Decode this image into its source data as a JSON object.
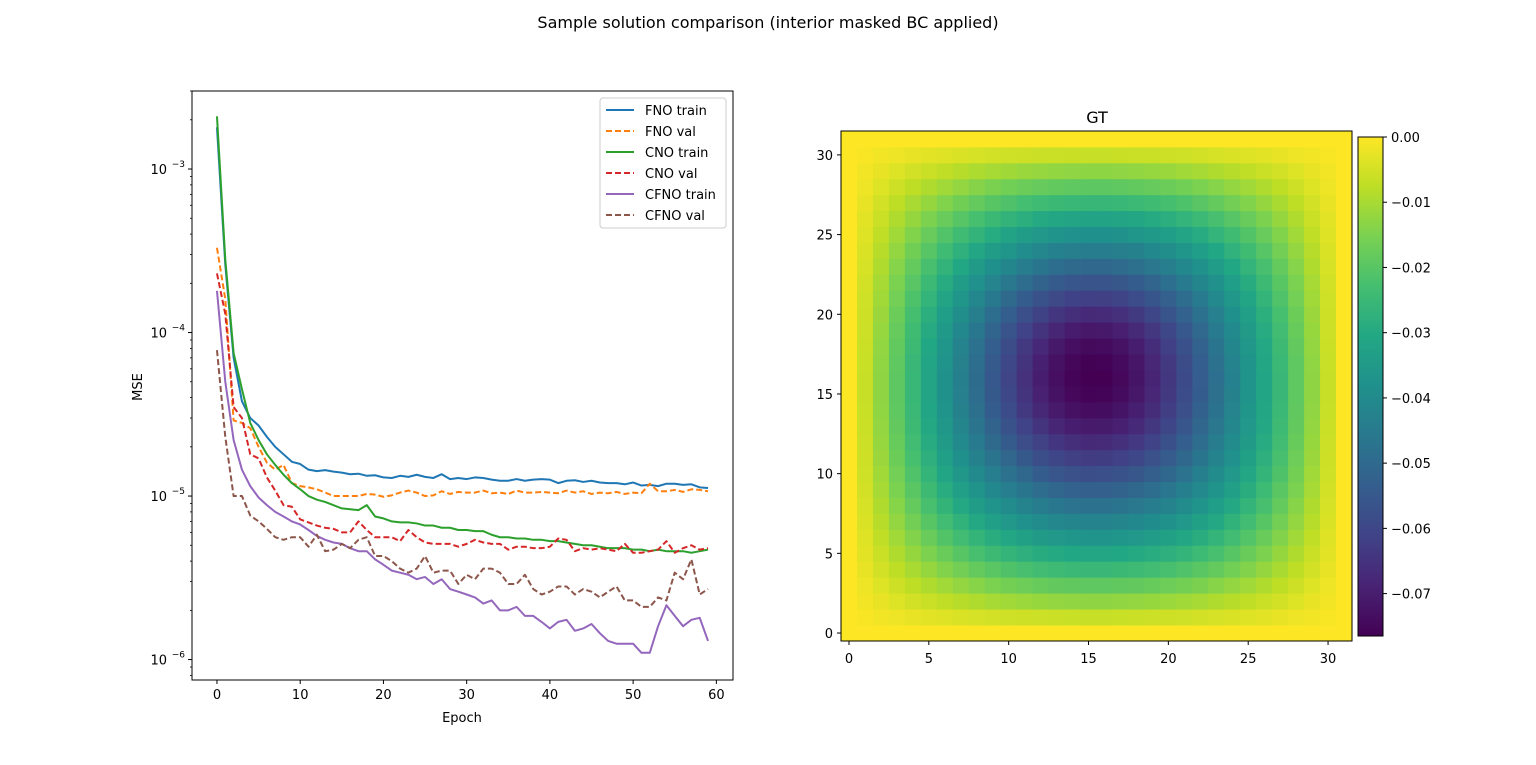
{
  "figure": {
    "suptitle": "Sample solution comparison (interior masked BC applied)"
  },
  "chart_data": [
    {
      "type": "line",
      "title": "",
      "xlabel": "Epoch",
      "ylabel": "MSE",
      "yscale": "log",
      "xlim": [
        -3,
        62
      ],
      "ylim": [
        7.5e-07,
        0.003
      ],
      "xticks": [
        0,
        10,
        20,
        30,
        40,
        50,
        60
      ],
      "yticks": [
        {
          "value": 1e-06,
          "base": "10",
          "exp": "−6"
        },
        {
          "value": 1e-05,
          "base": "10",
          "exp": "−5"
        },
        {
          "value": 0.0001,
          "base": "10",
          "exp": "−4"
        },
        {
          "value": 0.001,
          "base": "10",
          "exp": "−3"
        }
      ],
      "grid": false,
      "legend_position": "top-right",
      "series": [
        {
          "name": "FNO train",
          "color": "#1f77b4",
          "dash": "solid",
          "values": [
            0.0018,
            0.00026,
            7e-05,
            3.8e-05,
            3e-05,
            2.7e-05,
            2.3e-05,
            2e-05,
            1.8e-05,
            1.62e-05,
            1.57e-05,
            1.45e-05,
            1.42e-05,
            1.44e-05,
            1.41e-05,
            1.39e-05,
            1.36e-05,
            1.37e-05,
            1.33e-05,
            1.34e-05,
            1.3e-05,
            1.29e-05,
            1.33e-05,
            1.31e-05,
            1.35e-05,
            1.31e-05,
            1.29e-05,
            1.36e-05,
            1.27e-05,
            1.29e-05,
            1.27e-05,
            1.3e-05,
            1.29e-05,
            1.26e-05,
            1.24e-05,
            1.24e-05,
            1.27e-05,
            1.24e-05,
            1.26e-05,
            1.27e-05,
            1.26e-05,
            1.2e-05,
            1.24e-05,
            1.25e-05,
            1.22e-05,
            1.24e-05,
            1.21e-05,
            1.2e-05,
            1.2e-05,
            1.18e-05,
            1.21e-05,
            1.16e-05,
            1.17e-05,
            1.15e-05,
            1.19e-05,
            1.19e-05,
            1.17e-05,
            1.18e-05,
            1.13e-05,
            1.12e-05
          ]
        },
        {
          "name": "FNO val",
          "color": "#ff7f0e",
          "dash": "dashed",
          "values": [
            0.00033,
            0.00016,
            2.9e-05,
            2.8e-05,
            2.6e-05,
            2e-05,
            1.6e-05,
            1.45e-05,
            1.55e-05,
            1.2e-05,
            1.15e-05,
            1.13e-05,
            1.1e-05,
            1.05e-05,
            1e-05,
            1e-05,
            1e-05,
            1e-05,
            1.03e-05,
            1.02e-05,
            9.9e-06,
            1.01e-05,
            1.05e-05,
            1.08e-05,
            1.05e-05,
            1e-05,
            1.01e-05,
            1.07e-05,
            1.03e-05,
            1.06e-05,
            1.05e-05,
            1.05e-05,
            1.08e-05,
            1.04e-05,
            1.05e-05,
            1.03e-05,
            1.08e-05,
            1.05e-05,
            1.05e-05,
            1.06e-05,
            1.05e-05,
            1.04e-05,
            1.08e-05,
            1.05e-05,
            1.07e-05,
            1.03e-05,
            1.05e-05,
            1.04e-05,
            1.06e-05,
            1.03e-05,
            1.05e-05,
            1.04e-05,
            1.19e-05,
            1.07e-05,
            1.07e-05,
            1.09e-05,
            1.06e-05,
            1.1e-05,
            1.09e-05,
            1.07e-05
          ]
        },
        {
          "name": "CNO train",
          "color": "#2ca02c",
          "dash": "solid",
          "values": [
            0.0021,
            0.00028,
            7.5e-05,
            4.5e-05,
            2.8e-05,
            2.2e-05,
            1.8e-05,
            1.55e-05,
            1.35e-05,
            1.2e-05,
            1.1e-05,
            1e-05,
            9.5e-06,
            9.2e-06,
            8.8e-06,
            8.4e-06,
            8.3e-06,
            8.2e-06,
            8.8e-06,
            7.5e-06,
            7.3e-06,
            7e-06,
            6.9e-06,
            6.9e-06,
            6.8e-06,
            6.6e-06,
            6.6e-06,
            6.4e-06,
            6.4e-06,
            6.2e-06,
            6.2e-06,
            6.1e-06,
            6.1e-06,
            5.8e-06,
            5.6e-06,
            5.6e-06,
            5.5e-06,
            5.5e-06,
            5.4e-06,
            5.4e-06,
            5.3e-06,
            5.3e-06,
            5.2e-06,
            5.1e-06,
            5e-06,
            5e-06,
            4.9e-06,
            4.8e-06,
            4.8e-06,
            4.8e-06,
            4.7e-06,
            4.7e-06,
            4.6e-06,
            4.7e-06,
            4.6e-06,
            4.6e-06,
            4.6e-06,
            4.5e-06,
            4.6e-06,
            4.7e-06
          ]
        },
        {
          "name": "CNO val",
          "color": "#d62728",
          "dash": "dashed",
          "values": [
            0.00023,
            0.00013,
            3.5e-05,
            3e-05,
            1.8e-05,
            1.7e-05,
            1.3e-05,
            1.08e-05,
            8.8e-06,
            8.6e-06,
            7.2e-06,
            6.9e-06,
            6.6e-06,
            6.4e-06,
            6.3e-06,
            6e-06,
            6e-06,
            7e-06,
            6.2e-06,
            5.6e-06,
            5.6e-06,
            5.6e-06,
            5.3e-06,
            6.2e-06,
            5.6e-06,
            5.2e-06,
            5.1e-06,
            5.1e-06,
            5.1e-06,
            4.9e-06,
            5.1e-06,
            5.4e-06,
            5.2e-06,
            5.1e-06,
            5.1e-06,
            4.7e-06,
            4.9e-06,
            4.9e-06,
            4.8e-06,
            4.8e-06,
            4.9e-06,
            5.5e-06,
            5.4e-06,
            4.6e-06,
            4.8e-06,
            4.7e-06,
            4.8e-06,
            4.7e-06,
            4.6e-06,
            5.1e-06,
            4.5e-06,
            4.5e-06,
            4.6e-06,
            4.7e-06,
            5.3e-06,
            4.5e-06,
            4.8e-06,
            5e-06,
            4.7e-06,
            4.8e-06
          ]
        },
        {
          "name": "CFNO train",
          "color": "#9467bd",
          "dash": "solid",
          "values": [
            0.00018,
            5e-05,
            2.2e-05,
            1.45e-05,
            1.15e-05,
            9.8e-06,
            8.8e-06,
            8e-06,
            7.5e-06,
            7e-06,
            6.7e-06,
            6.2e-06,
            5.7e-06,
            5.4e-06,
            5.2e-06,
            5.1e-06,
            4.8e-06,
            4.6e-06,
            4.6e-06,
            4.1e-06,
            3.8e-06,
            3.5e-06,
            3.4e-06,
            3.3e-06,
            3.1e-06,
            3.2e-06,
            2.9e-06,
            3.1e-06,
            2.7e-06,
            2.6e-06,
            2.5e-06,
            2.4e-06,
            2.2e-06,
            2.3e-06,
            2e-06,
            2e-06,
            2.1e-06,
            1.85e-06,
            1.85e-06,
            1.7e-06,
            1.55e-06,
            1.7e-06,
            1.75e-06,
            1.5e-06,
            1.55e-06,
            1.65e-06,
            1.45e-06,
            1.3e-06,
            1.25e-06,
            1.25e-06,
            1.25e-06,
            1.1e-06,
            1.1e-06,
            1.6e-06,
            2.15e-06,
            1.85e-06,
            1.6e-06,
            1.75e-06,
            1.8e-06,
            1.3e-06
          ]
        },
        {
          "name": "CFNO val",
          "color": "#8c564b",
          "dash": "dashed",
          "values": [
            7.8e-05,
            2.3e-05,
            1e-05,
            1e-05,
            7.6e-06,
            7e-06,
            6.3e-06,
            5.6e-06,
            5.4e-06,
            5.6e-06,
            5.6e-06,
            4.9e-06,
            5.8e-06,
            4.6e-06,
            4.7e-06,
            5.1e-06,
            4.8e-06,
            5.4e-06,
            5.6e-06,
            4.3e-06,
            4.3e-06,
            4e-06,
            3.6e-06,
            3.4e-06,
            3.6e-06,
            4.3e-06,
            3.4e-06,
            3.5e-06,
            3.5e-06,
            2.9e-06,
            3.3e-06,
            3.1e-06,
            3.6e-06,
            3.6e-06,
            3.4e-06,
            2.9e-06,
            2.9e-06,
            3.3e-06,
            2.7e-06,
            2.5e-06,
            2.6e-06,
            2.8e-06,
            2.8e-06,
            2.5e-06,
            2.7e-06,
            2.6e-06,
            2.4e-06,
            2.6e-06,
            2.8e-06,
            2.3e-06,
            2.3e-06,
            2.1e-06,
            2.1e-06,
            2.4e-06,
            2.3e-06,
            3.4e-06,
            3.1e-06,
            4.1e-06,
            2.5e-06,
            2.7e-06
          ]
        }
      ]
    },
    {
      "type": "heatmap",
      "title": "GT",
      "grid_size": 32,
      "colormap": "viridis",
      "vmin": -0.0765,
      "vmax": 0.0,
      "xlim": [
        -0.5,
        31.5
      ],
      "ylim": [
        -0.5,
        31.5
      ],
      "xticks": [
        0,
        5,
        10,
        15,
        20,
        25,
        30
      ],
      "yticks": [
        0,
        5,
        10,
        15,
        20,
        25,
        30
      ],
      "boundary_value": 0.0,
      "minimum": {
        "x": 15,
        "y": 17,
        "value": -0.0765
      },
      "colorbar_ticks": [
        {
          "value": 0.0,
          "label": "0.00"
        },
        {
          "value": -0.01,
          "label": "−0.01"
        },
        {
          "value": -0.02,
          "label": "−0.02"
        },
        {
          "value": -0.03,
          "label": "−0.03"
        },
        {
          "value": -0.04,
          "label": "−0.04"
        },
        {
          "value": -0.05,
          "label": "−0.05"
        },
        {
          "value": -0.06,
          "label": "−0.06"
        },
        {
          "value": -0.07,
          "label": "−0.07"
        }
      ]
    }
  ]
}
